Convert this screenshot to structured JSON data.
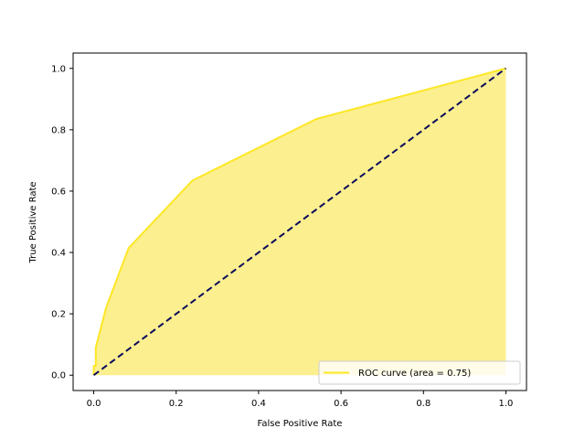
{
  "chart_data": {
    "type": "line",
    "title": "",
    "xlabel": "False Positive Rate",
    "ylabel": "True Positive Rate",
    "xlim": [
      -0.05,
      1.05
    ],
    "ylim": [
      -0.05,
      1.05
    ],
    "xticks": [
      0.0,
      0.2,
      0.4,
      0.6,
      0.8,
      1.0
    ],
    "yticks": [
      0.0,
      0.2,
      0.4,
      0.6,
      0.8,
      1.0
    ],
    "xtick_labels": [
      "0.0",
      "0.2",
      "0.4",
      "0.6",
      "0.8",
      "1.0"
    ],
    "ytick_labels": [
      "0.0",
      "0.2",
      "0.4",
      "0.6",
      "0.8",
      "1.0"
    ],
    "grid": false,
    "legend_position": "lower-right",
    "series": [
      {
        "name": "ROC curve (area = 0.75)",
        "style": "solid",
        "filled": true,
        "color": "#fde725",
        "fill_color": "#fbef8f",
        "x": [
          0.0,
          0.0,
          0.005,
          0.005,
          0.03,
          0.085,
          0.24,
          0.54,
          1.0
        ],
        "y": [
          0.0,
          0.03,
          0.03,
          0.09,
          0.22,
          0.415,
          0.635,
          0.835,
          1.0
        ]
      },
      {
        "style": "dashed",
        "color": "#0b0a5c",
        "x": [
          0.0,
          1.0
        ],
        "y": [
          0.0,
          1.0
        ]
      }
    ]
  }
}
